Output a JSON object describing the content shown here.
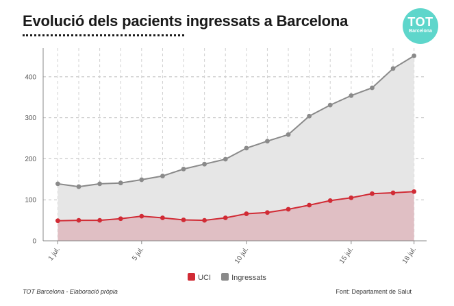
{
  "header": {
    "title": "Evolució dels pacients ingressats a Barcelona",
    "logo_top": "TOT",
    "logo_bottom": "Barcelona"
  },
  "footer": {
    "credit": "TOT Barcelona - Elaboració pròpia",
    "source": "Font: Departament de Salut"
  },
  "colors": {
    "uci": "#d12b35",
    "uci_fill": "#e0bfc4",
    "ingressats": "#8a8a8a",
    "ingressats_fill": "#e6e6e6",
    "logo": "#5ed6cb"
  },
  "chart_data": {
    "type": "area",
    "title": "Evolució dels pacients ingressats a Barcelona",
    "x": [
      1,
      2,
      3,
      4,
      5,
      6,
      7,
      8,
      9,
      10,
      11,
      12,
      13,
      14,
      15,
      16,
      17,
      18
    ],
    "xticks": [
      {
        "x": 1,
        "label": "1 jul."
      },
      {
        "x": 5,
        "label": "5 jul."
      },
      {
        "x": 10,
        "label": "10 jul."
      },
      {
        "x": 15,
        "label": "15 jul."
      },
      {
        "x": 18,
        "label": "18 jul."
      }
    ],
    "yticks": [
      0,
      100,
      200,
      300,
      400
    ],
    "ylim": [
      0,
      470
    ],
    "xlim": [
      0.3,
      18.6
    ],
    "grid": true,
    "legend_position": "bottom-center",
    "series": [
      {
        "name": "Ingressats",
        "color": "#8a8a8a",
        "values": [
          139,
          132,
          139,
          141,
          149,
          158,
          175,
          187,
          199,
          226,
          243,
          259,
          304,
          331,
          354,
          373,
          420,
          451
        ]
      },
      {
        "name": "UCI",
        "color": "#d12b35",
        "values": [
          49,
          50,
          50,
          54,
          60,
          56,
          51,
          50,
          56,
          66,
          69,
          77,
          87,
          98,
          105,
          115,
          117,
          120
        ]
      }
    ],
    "legend": [
      {
        "name": "UCI",
        "color": "#d12b35"
      },
      {
        "name": "Ingressats",
        "color": "#8a8a8a"
      }
    ]
  }
}
